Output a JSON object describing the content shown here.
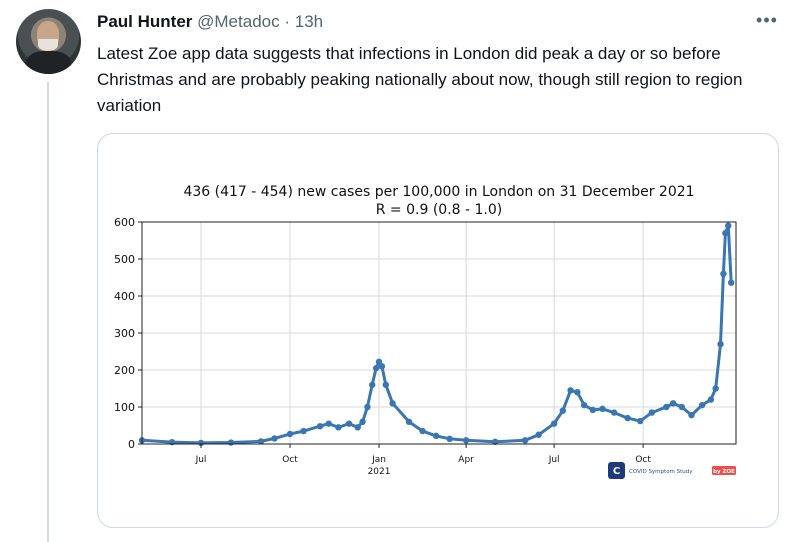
{
  "tweet": {
    "author_name": "Paul Hunter",
    "handle": "@Metadoc",
    "separator": "·",
    "time": "13h",
    "more_label": "•••",
    "text": "Latest Zoe app data suggests that infections in London did peak a day or so before Christmas and are probably peaking nationally about now, though still region to region variation"
  },
  "chart_logo": {
    "text": "COVID Symptom Study",
    "badge": "by ZOE",
    "badge_color": "#e8514b",
    "icon_color": "#1d3b7a"
  },
  "chart_data": {
    "type": "scatter",
    "title": "436 (417 - 454) new cases per 100,000 in London on 31 December 2021",
    "subtitle": "R = 0.9 (0.8 - 1.0)",
    "xlabel": "",
    "ylabel": "",
    "grid": true,
    "color": "#3a76b0",
    "ylim": [
      0,
      600
    ],
    "yticks": [
      0,
      100,
      200,
      300,
      400,
      500,
      600
    ],
    "xlim": [
      "2020-05-01",
      "2022-01-05"
    ],
    "xticks": [
      {
        "date": "2020-07-01",
        "label": "Jul",
        "sublabel": ""
      },
      {
        "date": "2020-10-01",
        "label": "Oct",
        "sublabel": ""
      },
      {
        "date": "2021-01-01",
        "label": "Jan",
        "sublabel": "2021"
      },
      {
        "date": "2021-04-01",
        "label": "Apr",
        "sublabel": ""
      },
      {
        "date": "2021-07-01",
        "label": "Jul",
        "sublabel": ""
      },
      {
        "date": "2021-10-01",
        "label": "Oct",
        "sublabel": ""
      }
    ],
    "series": [
      {
        "points": [
          [
            "2020-05-01",
            10
          ],
          [
            "2020-06-01",
            5
          ],
          [
            "2020-07-01",
            3
          ],
          [
            "2020-08-01",
            4
          ],
          [
            "2020-09-01",
            7
          ],
          [
            "2020-09-15",
            15
          ],
          [
            "2020-10-01",
            27
          ],
          [
            "2020-10-15",
            35
          ],
          [
            "2020-11-01",
            48
          ],
          [
            "2020-11-10",
            55
          ],
          [
            "2020-11-20",
            45
          ],
          [
            "2020-12-01",
            55
          ],
          [
            "2020-12-10",
            45
          ],
          [
            "2020-12-15",
            60
          ],
          [
            "2020-12-20",
            100
          ],
          [
            "2020-12-25",
            160
          ],
          [
            "2020-12-29",
            205
          ],
          [
            "2021-01-01",
            222
          ],
          [
            "2021-01-04",
            210
          ],
          [
            "2021-01-08",
            160
          ],
          [
            "2021-01-15",
            110
          ],
          [
            "2021-02-01",
            60
          ],
          [
            "2021-02-15",
            35
          ],
          [
            "2021-03-01",
            22
          ],
          [
            "2021-03-15",
            14
          ],
          [
            "2021-04-01",
            10
          ],
          [
            "2021-05-01",
            6
          ],
          [
            "2021-06-01",
            10
          ],
          [
            "2021-06-15",
            25
          ],
          [
            "2021-07-01",
            55
          ],
          [
            "2021-07-10",
            90
          ],
          [
            "2021-07-18",
            145
          ],
          [
            "2021-07-25",
            140
          ],
          [
            "2021-08-01",
            105
          ],
          [
            "2021-08-10",
            92
          ],
          [
            "2021-08-20",
            95
          ],
          [
            "2021-09-01",
            85
          ],
          [
            "2021-09-15",
            70
          ],
          [
            "2021-09-28",
            62
          ],
          [
            "2021-10-10",
            85
          ],
          [
            "2021-10-25",
            100
          ],
          [
            "2021-11-01",
            110
          ],
          [
            "2021-11-10",
            100
          ],
          [
            "2021-11-20",
            78
          ],
          [
            "2021-12-01",
            105
          ],
          [
            "2021-12-10",
            120
          ],
          [
            "2021-12-15",
            150
          ],
          [
            "2021-12-20",
            270
          ],
          [
            "2021-12-23",
            460
          ],
          [
            "2021-12-25",
            570
          ],
          [
            "2021-12-28",
            590
          ],
          [
            "2021-12-31",
            436
          ]
        ]
      }
    ]
  }
}
